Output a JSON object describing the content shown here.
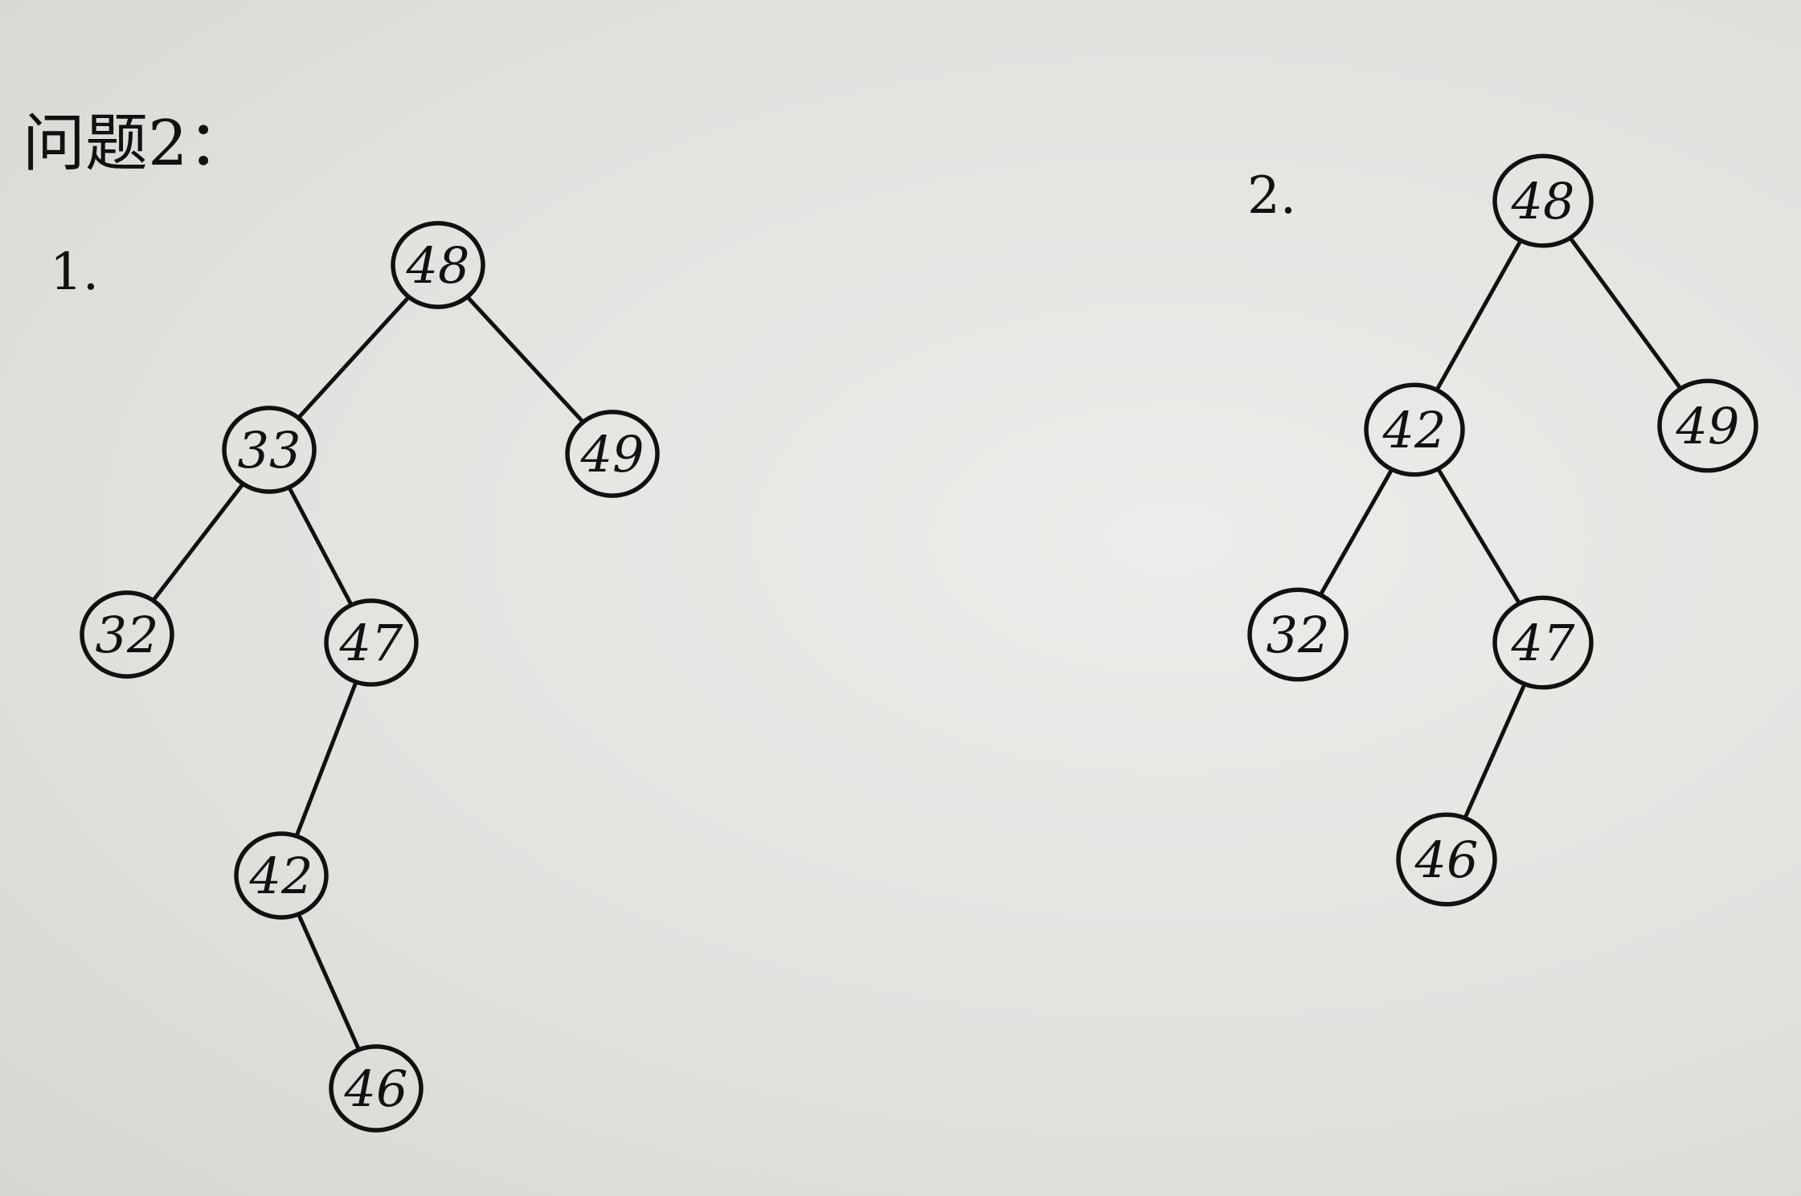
{
  "heading": "问题2：",
  "trees": [
    {
      "label": "1.",
      "nodes": [
        {
          "id": "48",
          "label": "48"
        },
        {
          "id": "33",
          "label": "33"
        },
        {
          "id": "49",
          "label": "49"
        },
        {
          "id": "32",
          "label": "32"
        },
        {
          "id": "47",
          "label": "47"
        },
        {
          "id": "42",
          "label": "42"
        },
        {
          "id": "46",
          "label": "46"
        }
      ],
      "edges": [
        [
          "48",
          "33"
        ],
        [
          "48",
          "49"
        ],
        [
          "33",
          "32"
        ],
        [
          "33",
          "47"
        ],
        [
          "47",
          "42"
        ],
        [
          "42",
          "46"
        ]
      ]
    },
    {
      "label": "2.",
      "nodes": [
        {
          "id": "48",
          "label": "48"
        },
        {
          "id": "42",
          "label": "42"
        },
        {
          "id": "49",
          "label": "49"
        },
        {
          "id": "32",
          "label": "32"
        },
        {
          "id": "47",
          "label": "47"
        },
        {
          "id": "46",
          "label": "46"
        }
      ],
      "edges": [
        [
          "48",
          "42"
        ],
        [
          "48",
          "49"
        ],
        [
          "42",
          "32"
        ],
        [
          "42",
          "47"
        ],
        [
          "47",
          "46"
        ]
      ]
    }
  ]
}
